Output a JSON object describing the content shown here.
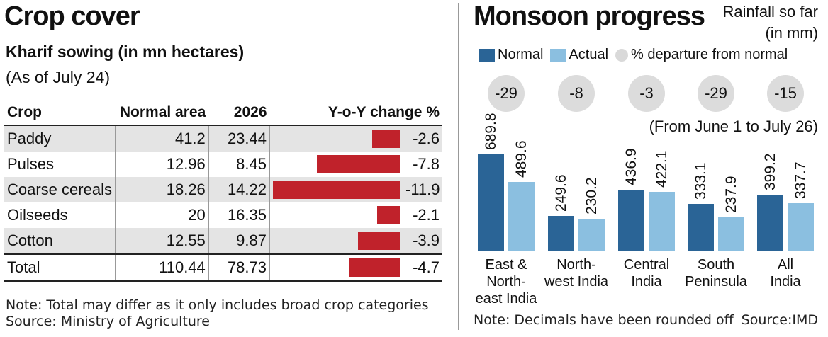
{
  "left": {
    "title": "Crop cover",
    "subtitle": "Kharif sowing (in mn hectares)",
    "asof": "(As of July 24)",
    "headers": [
      "Crop",
      "Normal area",
      "2026",
      "Y-o-Y change %"
    ],
    "rows": [
      {
        "crop": "Paddy",
        "normal": "41.2",
        "y2026": "23.44",
        "change": "-2.6"
      },
      {
        "crop": "Pulses",
        "normal": "12.96",
        "y2026": "8.45",
        "change": "-7.8"
      },
      {
        "crop": "Coarse cereals",
        "normal": "18.26",
        "y2026": "14.22",
        "change": "-11.9"
      },
      {
        "crop": "Oilseeds",
        "normal": "20",
        "y2026": "16.35",
        "change": "-2.1"
      },
      {
        "crop": "Cotton",
        "normal": "12.55",
        "y2026": "9.87",
        "change": "-3.9"
      },
      {
        "crop": "Total",
        "normal": "110.44",
        "y2026": "78.73",
        "change": "-4.7"
      }
    ],
    "note": "Note: Total may differ as it only includes broad crop categories",
    "source": "Source: Ministry of Agriculture"
  },
  "chart_data": {
    "type": "bar",
    "title": "Monsoon progress",
    "ylabel": "Rainfall so far (in mm)",
    "period": "(From June 1 to July 26)",
    "categories": [
      "East & North-east India",
      "North-west India",
      "Central India",
      "South Peninsula",
      "All India"
    ],
    "category_lines": [
      [
        "East &",
        "North-",
        "east India"
      ],
      [
        "North-",
        "west India"
      ],
      [
        "Central",
        "India"
      ],
      [
        "South",
        "Peninsula"
      ],
      [
        "All",
        "India"
      ]
    ],
    "series": [
      {
        "name": "Normal",
        "values": [
          689.8,
          249.6,
          436.9,
          333.1,
          399.2
        ],
        "color": "#2a6496"
      },
      {
        "name": "Actual",
        "values": [
          489.6,
          230.2,
          422.1,
          237.9,
          337.7
        ],
        "color": "#8bbfe0"
      }
    ],
    "departure_label": "% departure from normal",
    "departure": [
      -29,
      -8,
      -3,
      -29,
      -15
    ],
    "ylim": [
      0,
      700
    ],
    "legend": "top-left"
  },
  "right": {
    "title": "Monsoon progress",
    "rain_line1": "Rainfall so far",
    "rain_line2": "(in mm)",
    "note": "Note: Decimals have been rounded off",
    "source": "Source:IMD"
  }
}
